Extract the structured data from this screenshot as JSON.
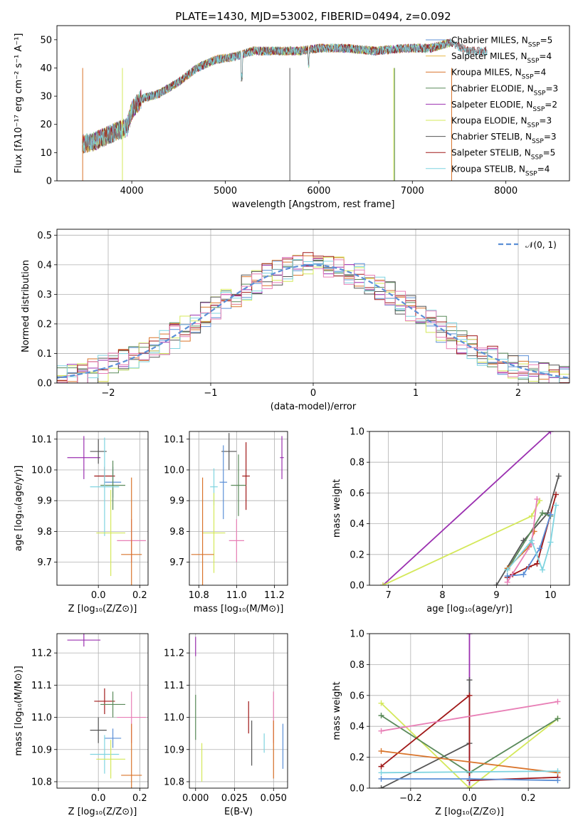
{
  "chart_data": [
    {
      "id": "spectrum",
      "type": "line",
      "title": "PLATE=1430, MJD=53002, FIBERID=0494, z=0.092",
      "xlabel": "wavelength [Angstrom, rest frame]",
      "ylabel": "Flux [fλ10⁻¹⁷ erg cm⁻² s⁻¹ A⁻¹]",
      "xlim": [
        3200,
        8680
      ],
      "ylim": [
        0,
        55
      ],
      "xticks": [
        4000,
        5000,
        6000,
        7000,
        8000
      ],
      "yticks": [
        0,
        10,
        20,
        30,
        40,
        50
      ],
      "continuum": [
        [
          3470,
          13
        ],
        [
          3600,
          14
        ],
        [
          3800,
          17
        ],
        [
          3950,
          19
        ],
        [
          4000,
          25
        ],
        [
          4100,
          29
        ],
        [
          4300,
          31
        ],
        [
          4500,
          35
        ],
        [
          4700,
          40
        ],
        [
          4900,
          43
        ],
        [
          5100,
          44
        ],
        [
          5300,
          46
        ],
        [
          5500,
          46
        ],
        [
          5800,
          46
        ],
        [
          6000,
          47
        ],
        [
          6300,
          47
        ],
        [
          6600,
          46
        ],
        [
          6900,
          47
        ],
        [
          7200,
          47
        ],
        [
          7400,
          49
        ],
        [
          7600,
          46
        ],
        [
          7800,
          46
        ]
      ],
      "series": [
        {
          "name": "Chabrier MILES, N_SSP=5",
          "color": "#5b8fd6",
          "range": [
            3470,
            7420
          ]
        },
        {
          "name": "Salpeter MILES, N_SSP=4",
          "color": "#e8b84a",
          "range": [
            3470,
            7420
          ]
        },
        {
          "name": "Kroupa MILES, N_SSP=4",
          "color": "#d9742b",
          "range": [
            3470,
            7420
          ]
        },
        {
          "name": "Chabrier ELODIE, N_SSP=3",
          "color": "#5a8a5a",
          "range": [
            3470,
            7420
          ]
        },
        {
          "name": "Salpeter ELODIE, N_SSP=2",
          "color": "#9b30b0",
          "range": [
            3470,
            7420
          ]
        },
        {
          "name": "Kroupa ELODIE, N_SSP=3",
          "color": "#d4e85a",
          "range": [
            3470,
            7420
          ]
        },
        {
          "name": "Chabrier STELIB, N_SSP=3",
          "color": "#555555",
          "range": [
            3470,
            7800
          ]
        },
        {
          "name": "Salpeter STELIB, N_SSP=5",
          "color": "#a01818",
          "range": [
            3470,
            7800
          ]
        },
        {
          "name": "Kroupa STELIB, N_SSP=4",
          "color": "#7fd4e0",
          "range": [
            3470,
            7800
          ]
        }
      ],
      "legend_items": [
        {
          "base": "Chabrier MILES, N",
          "sub": "SSP",
          "tail": "=5",
          "color": "#5b8fd6"
        },
        {
          "base": "Salpeter MILES, N",
          "sub": "SSP",
          "tail": "=4",
          "color": "#e8b84a"
        },
        {
          "base": "Kroupa MILES, N",
          "sub": "SSP",
          "tail": "=4",
          "color": "#d9742b"
        },
        {
          "base": "Chabrier ELODIE, N",
          "sub": "SSP",
          "tail": "=3",
          "color": "#5a8a5a"
        },
        {
          "base": "Salpeter ELODIE, N",
          "sub": "SSP",
          "tail": "=2",
          "color": "#9b30b0"
        },
        {
          "base": "Kroupa ELODIE, N",
          "sub": "SSP",
          "tail": "=3",
          "color": "#d4e85a"
        },
        {
          "base": "Chabrier STELIB, N",
          "sub": "SSP",
          "tail": "=3",
          "color": "#555555"
        },
        {
          "base": "Salpeter STELIB, N",
          "sub": "SSP",
          "tail": "=5",
          "color": "#a01818"
        },
        {
          "base": "Kroupa STELIB, N",
          "sub": "SSP",
          "tail": "=4",
          "color": "#7fd4e0"
        }
      ],
      "legend_placement": "upper right",
      "grid": false
    },
    {
      "id": "residuals",
      "type": "line",
      "xlabel": "(data-model)/error",
      "ylabel": "Normed distribution",
      "xlim": [
        -2.5,
        2.5
      ],
      "ylim": [
        0,
        0.52
      ],
      "xticks": [
        -2,
        -1,
        0,
        1,
        2
      ],
      "yticks": [
        0.0,
        0.1,
        0.2,
        0.3,
        0.4,
        0.5
      ],
      "gaussian_label": "𝒩(0, 1)",
      "gaussian_color": "#5b8fd6",
      "bin_width": 0.1,
      "histogram_colors": [
        "#5b8fd6",
        "#d9742b",
        "#5a8a5a",
        "#9b30b0",
        "#d4e85a",
        "#555555",
        "#a01818",
        "#7fd4e0",
        "#e87fb6"
      ],
      "legend_placement": "upper right",
      "grid": true
    },
    {
      "id": "age_vs_Z",
      "type": "scatter",
      "xlabel": "Z [log₁₀(Z/Z⊙)]",
      "ylabel": "age  [log₁₀(age/yr)]",
      "xlim": [
        -0.2,
        0.24
      ],
      "ylim": [
        9.625,
        10.125
      ],
      "xticks": [
        0.0,
        0.2
      ],
      "yticks": [
        9.7,
        9.8,
        9.9,
        10.0,
        10.1
      ],
      "points": [
        {
          "x": -0.07,
          "y": 10.04,
          "xerr": 0.08,
          "yerr": 0.07,
          "color": "#9b30b0"
        },
        {
          "x": 0.0,
          "y": 10.06,
          "xerr": 0.04,
          "yerr": 0.04,
          "color": "#555555"
        },
        {
          "x": 0.03,
          "y": 9.98,
          "xerr": 0.05,
          "yerr": 0.03,
          "color": "#a01818"
        },
        {
          "x": 0.07,
          "y": 9.96,
          "xerr": 0.04,
          "yerr": 0.05,
          "color": "#5b8fd6"
        },
        {
          "x": 0.07,
          "y": 9.95,
          "xerr": 0.06,
          "yerr": 0.08,
          "color": "#5a8a5a"
        },
        {
          "x": 0.03,
          "y": 9.945,
          "xerr": 0.07,
          "yerr": 0.16,
          "color": "#7fd4e0"
        },
        {
          "x": 0.06,
          "y": 9.795,
          "xerr": 0.07,
          "yerr": 0.14,
          "color": "#d4e85a"
        },
        {
          "x": 0.16,
          "y": 9.77,
          "xerr": 0.07,
          "yerr": 0.07,
          "color": "#e87fb6"
        },
        {
          "x": 0.16,
          "y": 9.725,
          "xerr": 0.05,
          "yerr": 0.25,
          "color": "#d9742b"
        }
      ],
      "grid": true
    },
    {
      "id": "age_vs_mass",
      "type": "scatter",
      "xlabel": "mass [log₁₀(M/M⊙)]",
      "ylabel": "",
      "xlim": [
        10.75,
        11.27
      ],
      "ylim": [
        9.625,
        10.125
      ],
      "xticks": [
        10.8,
        11.0,
        11.2
      ],
      "yticks": [
        9.7,
        9.8,
        9.9,
        10.0,
        10.1
      ],
      "points": [
        {
          "x": 11.24,
          "y": 10.04,
          "xerr": 0.01,
          "yerr": 0.07,
          "color": "#9b30b0"
        },
        {
          "x": 10.96,
          "y": 10.06,
          "xerr": 0.04,
          "yerr": 0.06,
          "color": "#555555"
        },
        {
          "x": 11.05,
          "y": 9.98,
          "xerr": 0.02,
          "yerr": 0.11,
          "color": "#a01818"
        },
        {
          "x": 10.93,
          "y": 9.96,
          "xerr": 0.02,
          "yerr": 0.12,
          "color": "#5b8fd6"
        },
        {
          "x": 11.01,
          "y": 9.95,
          "xerr": 0.04,
          "yerr": 0.1,
          "color": "#5a8a5a"
        },
        {
          "x": 10.88,
          "y": 9.945,
          "xerr": 0.02,
          "yerr": 0.06,
          "color": "#7fd4e0"
        },
        {
          "x": 10.88,
          "y": 9.795,
          "xerr": 0.06,
          "yerr": 0.13,
          "color": "#d4e85a"
        },
        {
          "x": 11.0,
          "y": 9.77,
          "xerr": 0.04,
          "yerr": 0.07,
          "color": "#e87fb6"
        },
        {
          "x": 10.82,
          "y": 9.725,
          "xerr": 0.06,
          "yerr": 0.25,
          "color": "#d9742b"
        }
      ],
      "grid": true
    },
    {
      "id": "massweight_vs_age",
      "type": "line",
      "xlabel": "age  [log₁₀(age/yr)]",
      "ylabel": "mass weight",
      "xlim": [
        6.65,
        10.35
      ],
      "ylim": [
        0,
        1
      ],
      "xticks": [
        7,
        8,
        9,
        10
      ],
      "yticks": [
        0.0,
        0.2,
        0.4,
        0.6,
        0.8,
        1.0
      ],
      "series": [
        {
          "color": "#9b30b0",
          "points": [
            [
              6.9,
              0.0
            ],
            [
              10.0,
              1.0
            ]
          ]
        },
        {
          "color": "#d4e85a",
          "points": [
            [
              6.9,
              0.0
            ],
            [
              9.65,
              0.45
            ],
            [
              9.8,
              0.55
            ]
          ]
        },
        {
          "color": "#555555",
          "points": [
            [
              9.0,
              0.0
            ],
            [
              9.5,
              0.29
            ],
            [
              9.95,
              0.47
            ],
            [
              10.15,
              0.71
            ]
          ]
        },
        {
          "color": "#5a8a5a",
          "points": [
            [
              9.2,
              0.1
            ],
            [
              9.85,
              0.47
            ],
            [
              10.0,
              0.45
            ]
          ]
        },
        {
          "color": "#a01818",
          "points": [
            [
              9.2,
              0.05
            ],
            [
              9.3,
              0.07
            ],
            [
              9.6,
              0.12
            ],
            [
              9.75,
              0.14
            ],
            [
              10.1,
              0.59
            ]
          ]
        },
        {
          "color": "#5b8fd6",
          "points": [
            [
              9.2,
              0.06
            ],
            [
              9.5,
              0.07
            ],
            [
              9.8,
              0.24
            ],
            [
              10.0,
              0.46
            ]
          ]
        },
        {
          "color": "#d9742b",
          "points": [
            [
              9.2,
              0.11
            ],
            [
              9.6,
              0.25
            ],
            [
              9.7,
              0.35
            ]
          ]
        },
        {
          "color": "#e87fb6",
          "points": [
            [
              9.2,
              0.02
            ],
            [
              9.65,
              0.27
            ],
            [
              9.75,
              0.56
            ]
          ]
        },
        {
          "color": "#7fd4e0",
          "points": [
            [
              9.2,
              0.1
            ],
            [
              9.65,
              0.29
            ],
            [
              9.85,
              0.1
            ],
            [
              10.0,
              0.28
            ],
            [
              10.1,
              0.52
            ]
          ]
        }
      ],
      "grid": true
    },
    {
      "id": "mass_vs_Z",
      "type": "scatter",
      "xlabel": "Z [log₁₀(Z/Z⊙)]",
      "ylabel": "mass [log₁₀(M/M⊙)]",
      "xlim": [
        -0.2,
        0.24
      ],
      "ylim": [
        10.78,
        11.26
      ],
      "xticks": [
        0.0,
        0.2
      ],
      "yticks": [
        10.8,
        10.9,
        11.0,
        11.1,
        11.2
      ],
      "points": [
        {
          "x": -0.07,
          "y": 11.24,
          "xerr": 0.08,
          "yerr": 0.02,
          "color": "#9b30b0"
        },
        {
          "x": 0.0,
          "y": 10.96,
          "xerr": 0.04,
          "yerr": 0.04,
          "color": "#555555"
        },
        {
          "x": 0.03,
          "y": 11.05,
          "xerr": 0.05,
          "yerr": 0.04,
          "color": "#a01818"
        },
        {
          "x": 0.07,
          "y": 10.935,
          "xerr": 0.04,
          "yerr": 0.03,
          "color": "#5b8fd6"
        },
        {
          "x": 0.07,
          "y": 11.04,
          "xerr": 0.06,
          "yerr": 0.04,
          "color": "#5a8a5a"
        },
        {
          "x": 0.03,
          "y": 10.885,
          "xerr": 0.07,
          "yerr": 0.06,
          "color": "#7fd4e0"
        },
        {
          "x": 0.06,
          "y": 10.87,
          "xerr": 0.07,
          "yerr": 0.06,
          "color": "#d4e85a"
        },
        {
          "x": 0.16,
          "y": 11.0,
          "xerr": 0.07,
          "yerr": 0.08,
          "color": "#e87fb6"
        },
        {
          "x": 0.16,
          "y": 10.82,
          "xerr": 0.05,
          "yerr": 0.16,
          "color": "#d9742b"
        }
      ],
      "grid": true
    },
    {
      "id": "mass_vs_ebv",
      "type": "scatter",
      "xlabel": "E(B-V)",
      "ylabel": "",
      "xlim": [
        -0.004,
        0.059
      ],
      "ylim": [
        10.78,
        11.26
      ],
      "xticks": [
        0.0,
        0.025,
        0.05
      ],
      "yticks": [
        10.8,
        10.9,
        11.0,
        11.1,
        11.2
      ],
      "points": [
        {
          "x": 0.0,
          "y": 11.22,
          "xerr": 0,
          "yerr": 0.03,
          "color": "#9b30b0"
        },
        {
          "x": 0.036,
          "y": 10.92,
          "xerr": 0,
          "yerr": 0.07,
          "color": "#555555"
        },
        {
          "x": 0.034,
          "y": 11.0,
          "xerr": 0,
          "yerr": 0.05,
          "color": "#a01818"
        },
        {
          "x": 0.056,
          "y": 10.91,
          "xerr": 0,
          "yerr": 0.07,
          "color": "#5b8fd6"
        },
        {
          "x": 0.0,
          "y": 11.0,
          "xerr": 0,
          "yerr": 0.07,
          "color": "#5a8a5a"
        },
        {
          "x": 0.044,
          "y": 10.92,
          "xerr": 0,
          "yerr": 0.03,
          "color": "#7fd4e0"
        },
        {
          "x": 0.004,
          "y": 10.86,
          "xerr": 0,
          "yerr": 0.06,
          "color": "#d4e85a"
        },
        {
          "x": 0.05,
          "y": 11.0,
          "xerr": 0,
          "yerr": 0.08,
          "color": "#e87fb6"
        },
        {
          "x": 0.05,
          "y": 10.9,
          "xerr": 0,
          "yerr": 0.09,
          "color": "#d9742b"
        }
      ],
      "grid": true
    },
    {
      "id": "massweight_vs_Z",
      "type": "line",
      "xlabel": "Z [log₁₀(Z/Z⊙)]",
      "ylabel": "mass weight",
      "xlim": [
        -0.34,
        0.34
      ],
      "ylim": [
        0,
        1
      ],
      "xticks": [
        -0.2,
        0.0,
        0.2
      ],
      "yticks": [
        0.0,
        0.2,
        0.4,
        0.6,
        0.8,
        1.0
      ],
      "series": [
        {
          "color": "#9b30b0",
          "points": [
            [
              0.0,
              0.0
            ],
            [
              0.0,
              1.0
            ]
          ]
        },
        {
          "color": "#d4e85a",
          "points": [
            [
              -0.3,
              0.55
            ],
            [
              0.0,
              0.0
            ],
            [
              0.3,
              0.45
            ]
          ]
        },
        {
          "color": "#555555",
          "points": [
            [
              -0.3,
              0.0
            ],
            [
              0.0,
              0.29
            ],
            [
              0.0,
              0.7
            ]
          ]
        },
        {
          "color": "#5a8a5a",
          "points": [
            [
              -0.3,
              0.47
            ],
            [
              0.0,
              0.1
            ],
            [
              0.3,
              0.45
            ]
          ]
        },
        {
          "color": "#a01818",
          "points": [
            [
              -0.3,
              0.14
            ],
            [
              0.0,
              0.6
            ],
            [
              0.0,
              0.05
            ],
            [
              0.3,
              0.07
            ]
          ]
        },
        {
          "color": "#5b8fd6",
          "points": [
            [
              -0.3,
              0.06
            ],
            [
              0.0,
              0.06
            ],
            [
              0.3,
              0.05
            ]
          ]
        },
        {
          "color": "#d9742b",
          "points": [
            [
              -0.3,
              0.24
            ],
            [
              0.3,
              0.1
            ]
          ]
        },
        {
          "color": "#e87fb6",
          "points": [
            [
              -0.3,
              0.37
            ],
            [
              0.3,
              0.56
            ]
          ]
        },
        {
          "color": "#7fd4e0",
          "points": [
            [
              -0.3,
              0.1
            ],
            [
              0.3,
              0.11
            ]
          ]
        }
      ],
      "grid": true
    }
  ]
}
